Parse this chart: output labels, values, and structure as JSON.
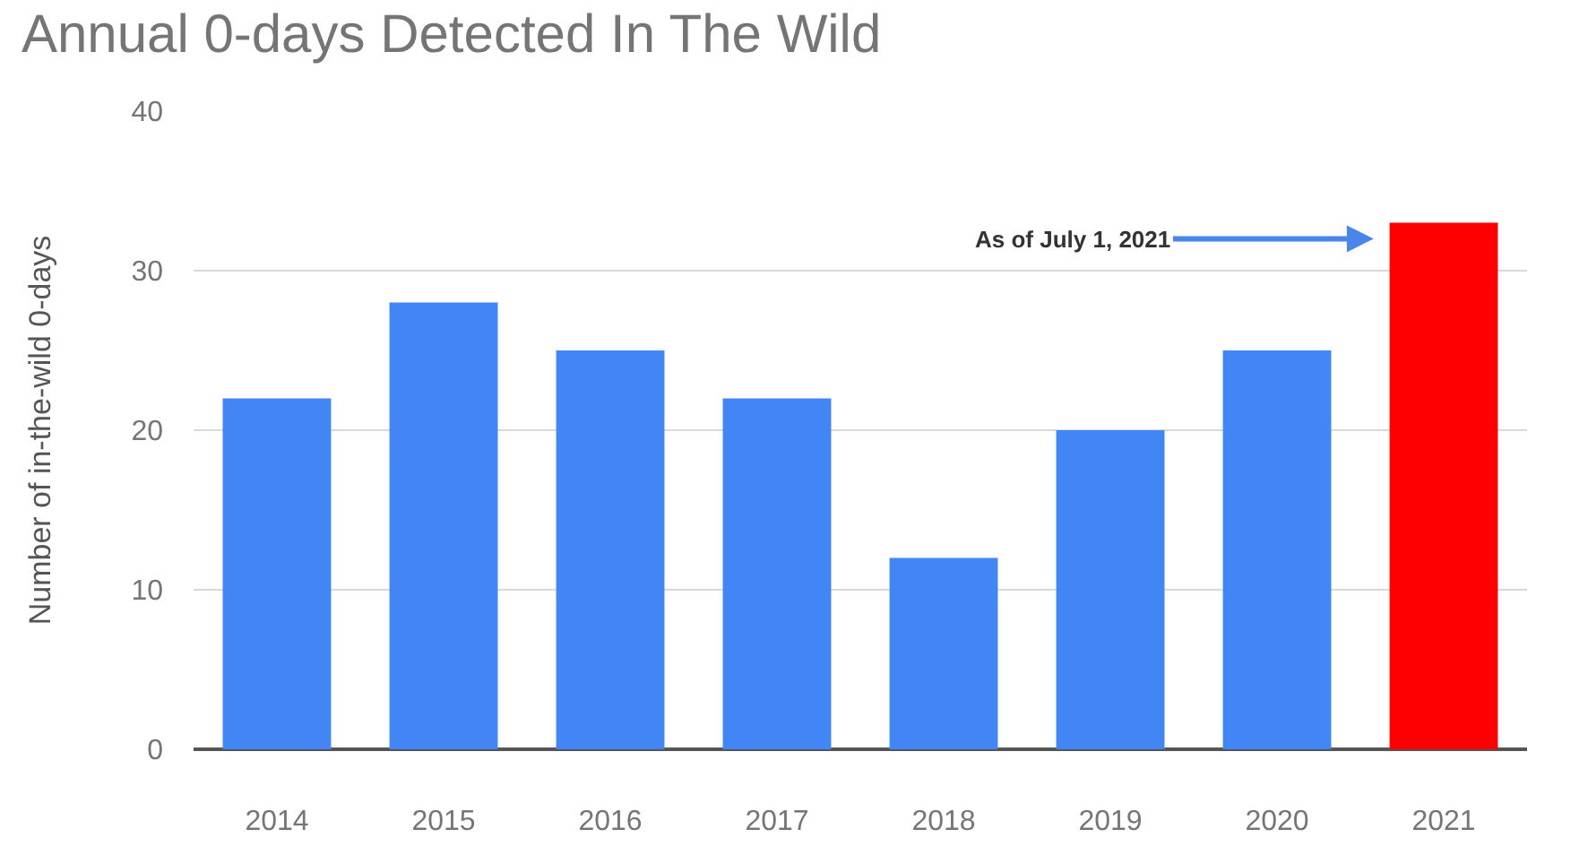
{
  "chart_data": {
    "type": "bar",
    "title": "Annual 0-days Detected In The Wild",
    "ylabel": "Number of in-the-wild 0-days",
    "categories": [
      "2014",
      "2015",
      "2016",
      "2017",
      "2018",
      "2019",
      "2020",
      "2021"
    ],
    "values": [
      22,
      28,
      25,
      22,
      12,
      20,
      25,
      33
    ],
    "colors": [
      "#4285f4",
      "#4285f4",
      "#4285f4",
      "#4285f4",
      "#4285f4",
      "#4285f4",
      "#4285f4",
      "#ff0000"
    ],
    "ylim": [
      0,
      40
    ],
    "yticks": [
      0,
      10,
      20,
      30,
      40
    ],
    "grid": "y",
    "legend": false,
    "annotations": [
      "As of July 1, 2021"
    ]
  }
}
